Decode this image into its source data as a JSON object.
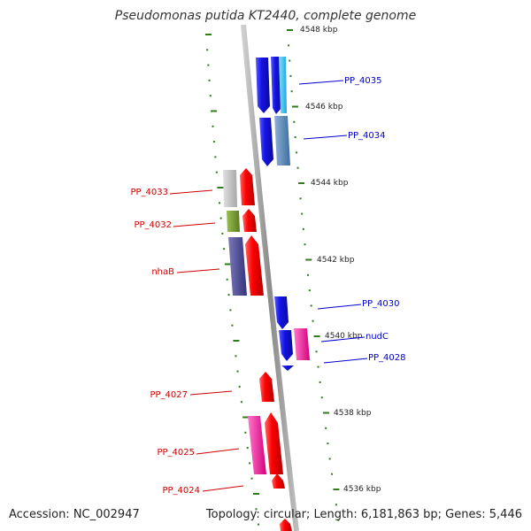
{
  "title": "Pseudomonas putida KT2440, complete genome",
  "accession": "Accession: NC_002947",
  "topology": "Topology: circular; Length: 6,181,863 bp; Genes: 5,446",
  "colors": {
    "backbone": "#999999",
    "tick": "#2e7d1a",
    "forward_label": "#cc0000",
    "reverse_label": "#0000cc",
    "kbp_text": "#222222"
  },
  "kbp_labels": [
    "4548 kbp",
    "4546 kbp",
    "4544 kbp",
    "4542 kbp",
    "4540 kbp",
    "4538 kbp",
    "4536 kbp"
  ],
  "genes_reverse": [
    {
      "label": "PP_4035",
      "color": "#1414e6"
    },
    {
      "label": "PP_4034",
      "color": "#1414e6"
    },
    {
      "label": "PP_4030",
      "color": "#1414e6"
    },
    {
      "label": "nudC",
      "color": "#1414e6"
    },
    {
      "label": "PP_4028",
      "color": "#1414e6"
    }
  ],
  "genes_forward": [
    {
      "label": "PP_4033",
      "color": "#ff0000"
    },
    {
      "label": "PP_4032",
      "color": "#ff0000"
    },
    {
      "label": "nhaB",
      "color": "#ff0000"
    },
    {
      "label": "PP_4027",
      "color": "#ff0000"
    },
    {
      "label": "PP_4025",
      "color": "#ff0000"
    },
    {
      "label": "PP_4024",
      "color": "#ff0000"
    }
  ]
}
